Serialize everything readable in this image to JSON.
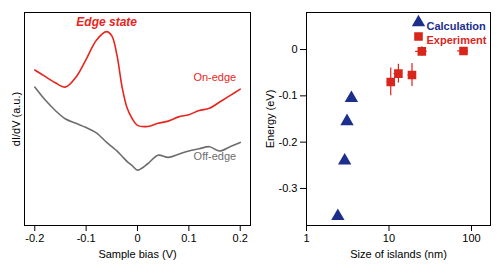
{
  "chart_data": [
    {
      "type": "line",
      "xlabel": "Sample bias (V)",
      "ylabel": "dI/dV (a.u.)",
      "annotations": [
        "Edge state"
      ],
      "x": [
        -0.2,
        -0.18,
        -0.16,
        -0.14,
        -0.12,
        -0.1,
        -0.08,
        -0.06,
        -0.05,
        -0.04,
        -0.03,
        -0.02,
        -0.01,
        0,
        0.02,
        0.04,
        0.06,
        0.08,
        0.1,
        0.12,
        0.14,
        0.16,
        0.18,
        0.2
      ],
      "series": [
        {
          "name": "On-edge",
          "color": "#e8251d",
          "values": [
            7.3,
            7.0,
            6.7,
            6.5,
            6.96,
            7.8,
            8.7,
            9.1,
            8.9,
            8.0,
            6.5,
            5.5,
            5.0,
            4.7,
            4.65,
            4.8,
            4.9,
            5.1,
            5.2,
            5.4,
            5.5,
            5.8,
            6.1,
            6.4
          ]
        },
        {
          "name": "Off-edge",
          "color": "#6d6d6d",
          "values": [
            6.5,
            5.9,
            5.4,
            5.0,
            4.8,
            4.6,
            4.35,
            3.9,
            3.7,
            3.5,
            3.25,
            3.0,
            2.8,
            2.6,
            2.9,
            3.3,
            3.2,
            3.35,
            3.5,
            3.6,
            3.7,
            3.5,
            3.7,
            3.9
          ]
        }
      ],
      "xlim": [
        -0.22,
        0.22
      ],
      "xticks": [
        -0.2,
        -0.1,
        0,
        0.1,
        0.2
      ],
      "ylim": [
        0,
        10
      ],
      "yticks": [],
      "tick_labels": "x"
    },
    {
      "type": "scatter",
      "xlabel": "Size of islands (nm)",
      "ylabel": "Energy (eV)",
      "log": "x",
      "xlim": [
        1,
        170
      ],
      "xticks": [
        1,
        10,
        100
      ],
      "ylim": [
        -0.38,
        0.08
      ],
      "yticks": [
        -0.3,
        -0.2,
        -0.1,
        0
      ],
      "legend": "top right",
      "series": [
        {
          "name": "Calculation",
          "color": "#1c2f8c",
          "marker": "triangle",
          "x": [
            2.4,
            2.9,
            3.1,
            3.5
          ],
          "values": [
            -0.36,
            -0.24,
            -0.155,
            -0.105
          ]
        },
        {
          "name": "Experiment",
          "color": "#d9261c",
          "marker": "square",
          "x": [
            10.5,
            13,
            19,
            25,
            80
          ],
          "values": [
            -0.07,
            -0.052,
            -0.055,
            -0.004,
            -0.003
          ],
          "x_error": [
            1,
            1.5,
            2,
            4,
            12
          ],
          "y_error": [
            0.03,
            0.02,
            0.025,
            0.01,
            0.005
          ]
        }
      ]
    }
  ]
}
